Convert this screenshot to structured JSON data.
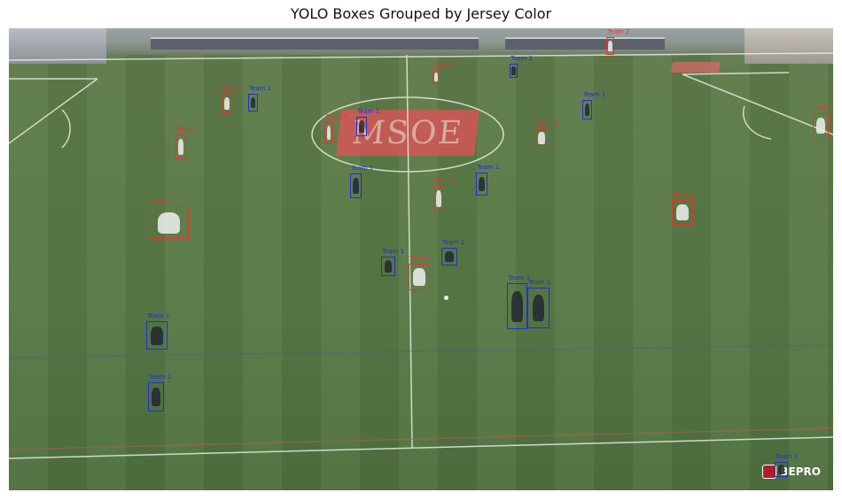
{
  "figure": {
    "title": "YOLO Boxes Grouped by Jersey Color"
  },
  "watermark": {
    "text": "BEPRO",
    "icon": "bepro-logo-icon"
  },
  "colors": {
    "team_red": "#e8332f",
    "team_blue": "#1f2fd6",
    "pitch": "#5a7a46",
    "lines": "#e6ece4"
  },
  "detections": [
    {
      "team": "red",
      "label": "Team 2"
    },
    {
      "team": "blue",
      "label": "Team 1"
    },
    {
      "team": "red",
      "label": "Team 2"
    },
    {
      "team": "blue",
      "label": "Team 1"
    },
    {
      "team": "red",
      "label": "Team 2"
    },
    {
      "team": "red",
      "label": "Team 2"
    },
    {
      "team": "blue",
      "label": "Team 1"
    },
    {
      "team": "red",
      "label": "Team 2"
    },
    {
      "team": "blue",
      "label": "Team 1"
    },
    {
      "team": "red",
      "label": "Team 2"
    },
    {
      "team": "blue",
      "label": "Team 1"
    },
    {
      "team": "red",
      "label": "Team 2"
    },
    {
      "team": "blue",
      "label": "Team 1"
    },
    {
      "team": "red",
      "label": "Team 2"
    },
    {
      "team": "blue",
      "label": "Team 1"
    },
    {
      "team": "red",
      "label": "Team 2"
    },
    {
      "team": "blue",
      "label": "Team 1"
    },
    {
      "team": "blue",
      "label": "Team 1"
    },
    {
      "team": "red",
      "label": "Team 2"
    },
    {
      "team": "blue",
      "label": "Team 1"
    },
    {
      "team": "blue",
      "label": "Team 1"
    },
    {
      "team": "red",
      "label": "Team 2"
    },
    {
      "team": "blue",
      "label": "Team 1"
    },
    {
      "team": "blue",
      "label": "Team 1"
    }
  ]
}
